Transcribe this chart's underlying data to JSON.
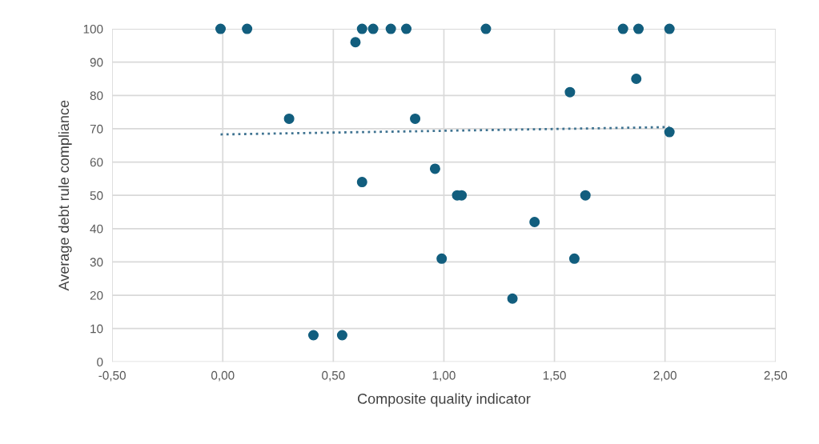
{
  "chart_data": {
    "type": "scatter",
    "xlabel": "Composite quality indicator",
    "ylabel": "Average debt rule compliance",
    "xlim": [
      -0.5,
      2.5
    ],
    "xticks": [
      {
        "value": -0.5,
        "label": "-0,50"
      },
      {
        "value": 0,
        "label": "0,00"
      },
      {
        "value": 0.5,
        "label": "0,50"
      },
      {
        "value": 1,
        "label": "1,00"
      },
      {
        "value": 1.5,
        "label": "1,50"
      },
      {
        "value": 2,
        "label": "2,00"
      },
      {
        "value": 2.5,
        "label": "2,50"
      }
    ],
    "ylim": [
      0,
      100
    ],
    "yticks": [
      0,
      10,
      20,
      30,
      40,
      50,
      60,
      70,
      80,
      90,
      100
    ],
    "grid": true,
    "series": [
      {
        "marker": "circle",
        "color": "#125e7e",
        "x": [
          -0.01,
          0.11,
          0.63,
          0.68,
          0.76,
          0.83,
          0.6,
          0.3,
          0.87,
          0.96,
          0.63,
          1.06,
          1.08,
          0.99,
          0.41,
          0.54,
          1.19,
          1.81,
          1.88,
          2.02,
          1.87,
          1.57,
          2.02,
          1.64,
          1.41,
          1.59,
          1.31
        ],
        "values": [
          100,
          100,
          100,
          100,
          100,
          100,
          96,
          73,
          73,
          58,
          54,
          50,
          50,
          31,
          8,
          8,
          100,
          100,
          100,
          100,
          85,
          81,
          69,
          50,
          42,
          31,
          19
        ]
      },
      {
        "type": "line",
        "marker": "none",
        "color": "#3f7391",
        "line_style": "dotted",
        "x": [
          -0.01,
          2.02
        ],
        "values": [
          68.3,
          70.5
        ]
      }
    ]
  }
}
